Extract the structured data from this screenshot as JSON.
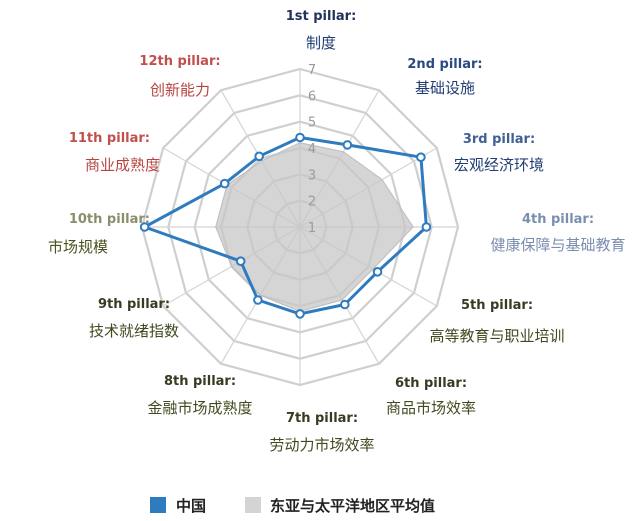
{
  "chart_data": {
    "type": "radar",
    "title": "",
    "r_min": 1,
    "r_max": 7,
    "ticks": [
      "1",
      "2",
      "3",
      "4",
      "5",
      "6",
      "7"
    ],
    "axes": [
      {
        "en": "1st pillar:",
        "zh": "制度",
        "group": "basic"
      },
      {
        "en": "2nd pillar:",
        "zh": "基础设施",
        "group": "basic"
      },
      {
        "en": "3rd pillar:",
        "zh": "宏观经济环境",
        "group": "basic"
      },
      {
        "en": "4th pillar:",
        "zh": "健康保障与基础教育",
        "group": "basic"
      },
      {
        "en": "5th pillar:",
        "zh": "高等教育与职业培训",
        "group": "efficiency"
      },
      {
        "en": "6th pillar:",
        "zh": "商品市场效率",
        "group": "efficiency"
      },
      {
        "en": "7th pillar:",
        "zh": "劳动力市场效率",
        "group": "efficiency"
      },
      {
        "en": "8th pillar:",
        "zh": "金融市场成熟度",
        "group": "efficiency"
      },
      {
        "en": "9th pillar:",
        "zh": "技术就绪指数",
        "group": "efficiency"
      },
      {
        "en": "10th pillar:",
        "zh": "市场规模",
        "group": "efficiency"
      },
      {
        "en": "11th pillar:",
        "zh": "商业成熟度",
        "group": "innovation"
      },
      {
        "en": "12th pillar:",
        "zh": "创新能力",
        "group": "innovation"
      }
    ],
    "series": [
      {
        "name": "中国",
        "color": "#2e7bbf",
        "values": [
          4.4,
          4.6,
          6.3,
          5.8,
          4.4,
          4.4,
          4.3,
          4.2,
          3.6,
          6.9,
          4.3,
          4.1
        ]
      },
      {
        "name": "东亚与太平洋地区平均值",
        "color": "#d9d9d9",
        "values": [
          4.2,
          4.3,
          4.6,
          5.3,
          4.2,
          4.2,
          4.2,
          4.0,
          4.0,
          4.2,
          4.2,
          3.9
        ]
      }
    ],
    "colors": {
      "basic_en": "#22335a",
      "basic_zh": "#1f3e74",
      "efficiency_en": "#3a3a22",
      "efficiency_zh": "#3f4a1e",
      "innovation_en": "#c0504d",
      "innovation_zh": "#b84540",
      "axis_en_2": "#2a4a82",
      "axis_en_3": "#3f5f95",
      "axis_en_4": "#7a8fb0",
      "axis_zh_4": "#7b8db0",
      "axis_en_10": "#8a8f6a",
      "axis_zh_10": "#4b5220",
      "grid": "#cfcfcf",
      "spoke": "#d4d4d4"
    },
    "legend": {
      "position": "bottom"
    }
  }
}
